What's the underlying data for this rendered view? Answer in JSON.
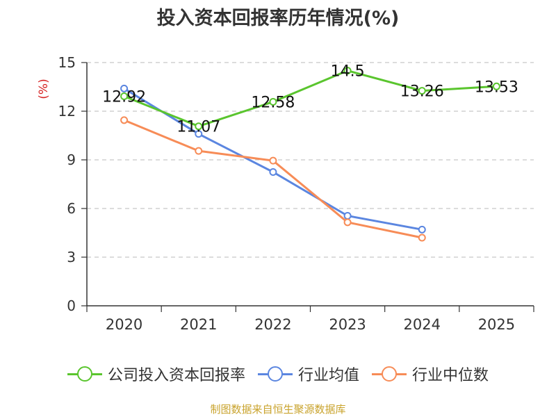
{
  "title": "投入资本回报率历年情况(%)",
  "source": "制图数据来自恒生聚源数据库",
  "chart_data": {
    "type": "line",
    "title": "投入资本回报率历年情况(%)",
    "ylabel": "(%)",
    "xlabel": "",
    "categories": [
      "2020",
      "2021",
      "2022",
      "2023",
      "2024",
      "2025"
    ],
    "ylim": [
      0,
      15
    ],
    "yticks": [
      0,
      3,
      6,
      9,
      12,
      15
    ],
    "grid": true,
    "legend_position": "bottom",
    "series": [
      {
        "name": "公司投入资本回报率",
        "color": "#5ac52e",
        "values": [
          12.92,
          11.07,
          12.58,
          14.5,
          13.26,
          13.53
        ],
        "labels": [
          "12.92",
          "11.07",
          "12.58",
          "14.5",
          "13.26",
          "13.53"
        ]
      },
      {
        "name": "行业均值",
        "color": "#5b86e0",
        "values": [
          13.4,
          10.6,
          8.25,
          5.55,
          4.7,
          null
        ]
      },
      {
        "name": "行业中位数",
        "color": "#f78c57",
        "values": [
          11.45,
          9.55,
          8.95,
          5.15,
          4.2,
          null
        ]
      }
    ]
  }
}
